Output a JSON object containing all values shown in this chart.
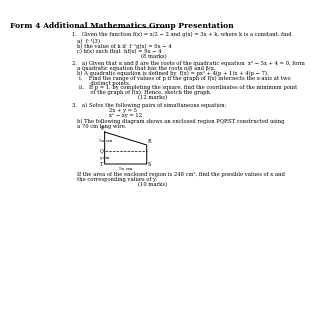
{
  "title": "Form 4 Additional Mathematics Group Presentation",
  "bg_color": "#ffffff",
  "text_color": "#000000",
  "q1_header": "1.   Given the function f(x) = x/2 − 2 and g(x) = 3x + k, where k is a constant, find",
  "q1a": "a)  f⁻¹(3)",
  "q1b": "b) the value of k if  f⁻¹g(x) = 6x − 4",
  "q1c": "c) h(x) such that  hf(x) = 9x − 4",
  "q1_marks": "(8 marks)",
  "q2_header": "2.   a) Given that α and β are the roots of the quadratic equation  x² − 5x + 4 = 0, form",
  "q2a_cont": "a quadratic equation that has the roots α/β and β/α.",
  "q2b": "b) A quadratic equation is defined by  f(x) = px² + 4(p + 1)x + 4(p − 7).",
  "q2b_i": "i.    Find the range of values of p if the graph of f(x) intersects the x-axis at two",
  "q2b_i2": "       distinct points.",
  "q2b_ii": "ii.   If p = 1, by completing the square, find the coordinates of the minimum point",
  "q2b_ii2": "       of the graph of f(x). Hence, sketch the graph.",
  "q2_marks": "(12 marks)",
  "q3_header": "3.   a) Solve the following pairs of simultaneous equation:",
  "q3_eq1": "2x + y = 5",
  "q3_eq2": "x² − xy = 12",
  "q3b": "b) The following diagram shows an enclosed region PQRST constructed using",
  "q3b2": "a 70 cm long wire.",
  "q3_foot1": "If the area of the enclosed region is 248 cm², find the possible values of x and",
  "q3_foot2": "the corresponding values of y.",
  "q3_marks": "(10 marks)"
}
